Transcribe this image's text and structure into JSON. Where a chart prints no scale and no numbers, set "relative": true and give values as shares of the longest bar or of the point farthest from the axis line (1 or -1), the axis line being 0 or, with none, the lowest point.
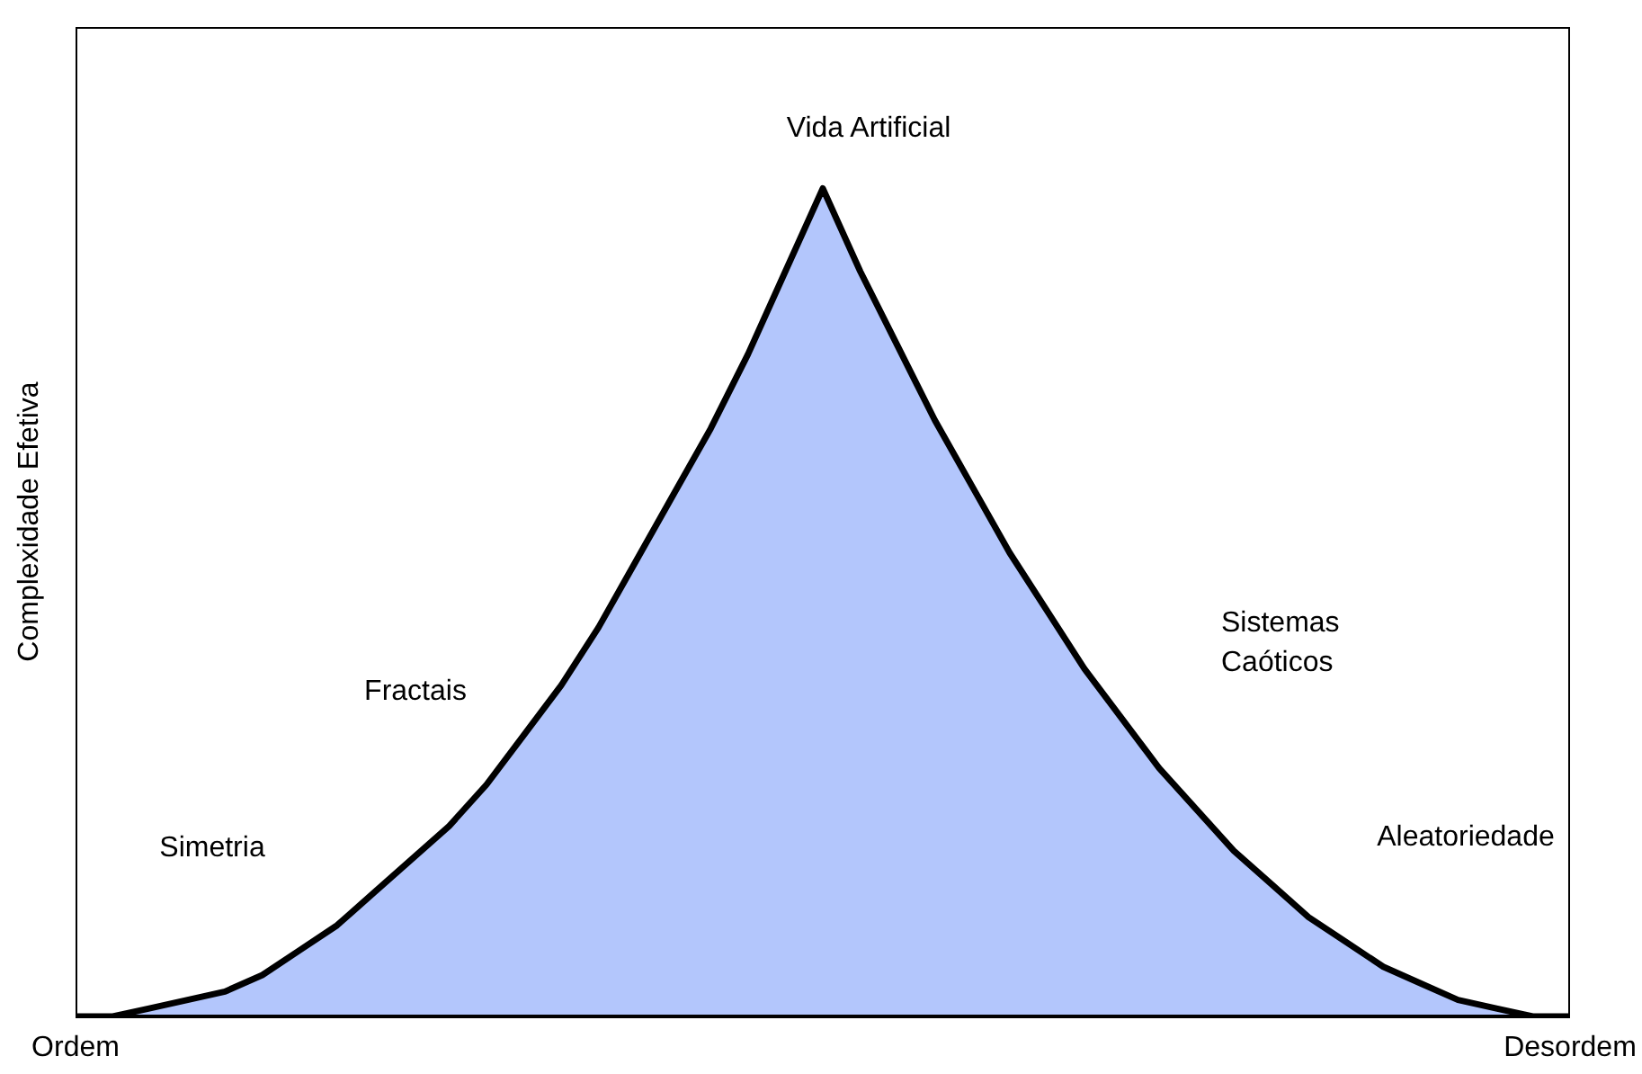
{
  "chart_data": {
    "type": "area",
    "relative": true,
    "ylabel": "Complexidade Efetiva",
    "categories": [
      "Ordem",
      null,
      null,
      null,
      null,
      null,
      null,
      null,
      null,
      null,
      null,
      null,
      null,
      null,
      null,
      null,
      null,
      null,
      null,
      null,
      null,
      null,
      null,
      null,
      null,
      null,
      null,
      null,
      null,
      null,
      null,
      null,
      null,
      null,
      null,
      null,
      null,
      null,
      null,
      null,
      "Desordem"
    ],
    "series": [
      {
        "color": "#b3c6fc",
        "values": [
          0,
          0,
          0.01,
          0.02,
          0.03,
          0.05,
          0.08,
          0.11,
          0.15,
          0.19,
          0.23,
          0.28,
          0.34,
          0.4,
          0.47,
          0.55,
          0.63,
          0.71,
          0.8,
          0.9,
          1,
          0.9,
          0.81,
          0.72,
          0.64,
          0.56,
          0.49,
          0.42,
          0.36,
          0.3,
          0.25,
          0.2,
          0.16,
          0.12,
          0.09,
          0.06,
          0.04,
          0.02,
          0.01,
          0,
          0
        ]
      }
    ],
    "annotations": [
      "Vida Artificial",
      "Fractais",
      "Simetria",
      "Sistemas\nCaóticos",
      "Aleatoriedade"
    ]
  }
}
